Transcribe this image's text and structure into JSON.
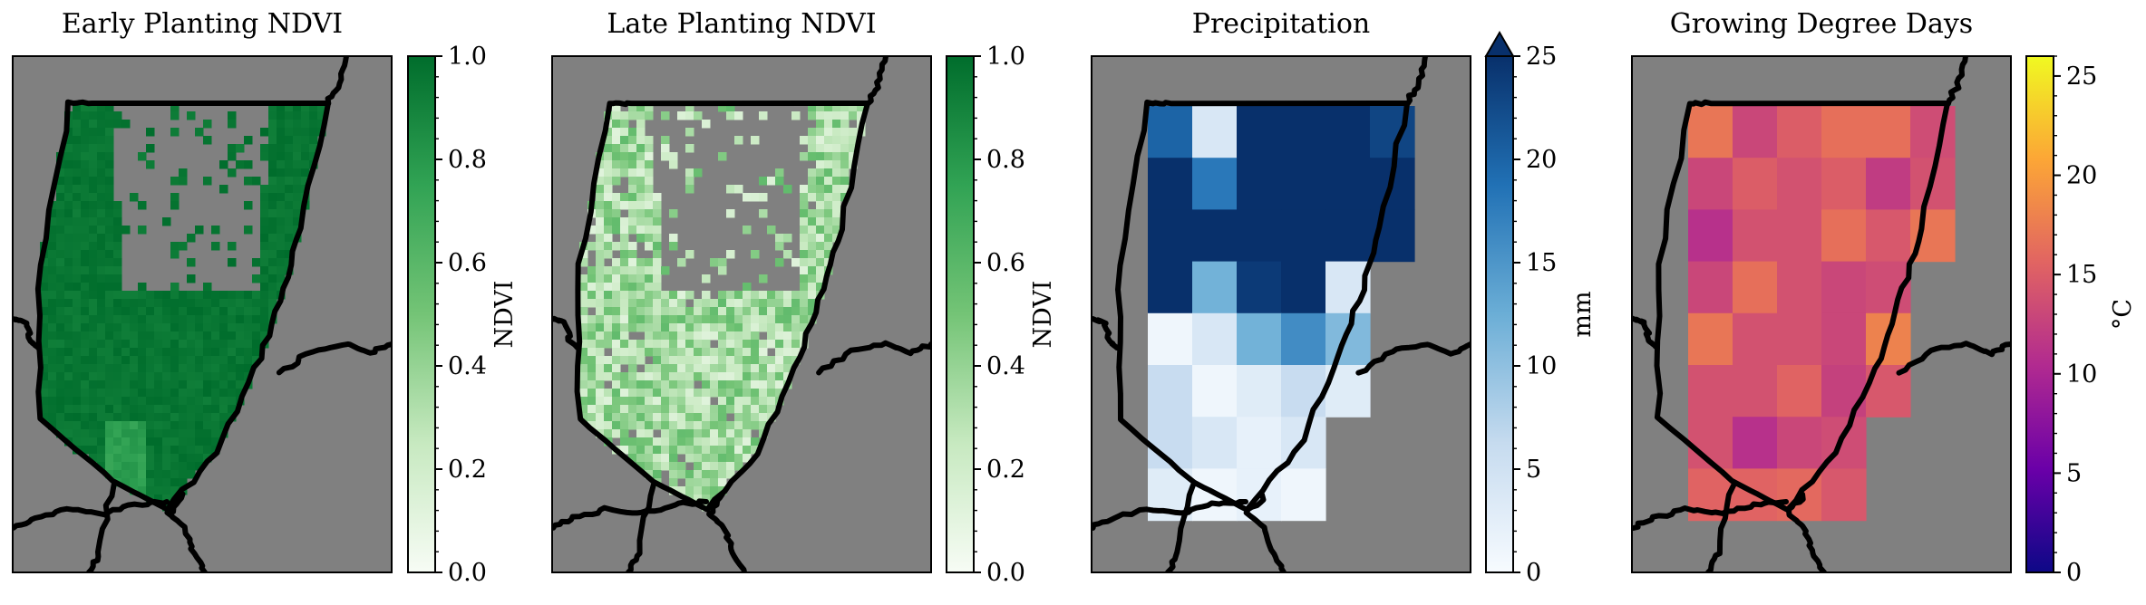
{
  "chart_data": [
    {
      "type": "heatmap",
      "title": "Early Planting NDVI",
      "colorbar": {
        "label": "NDVI",
        "range": [
          0.0,
          1.0
        ],
        "ticks": [
          "0.0",
          "0.2",
          "0.4",
          "0.6",
          "0.8",
          "1.0"
        ],
        "colormap": "Greens",
        "extend": "neither"
      },
      "description_values": {
        "dominant_value": 1.0,
        "patch_low_value": 0.75,
        "background": "no data (gray)"
      }
    },
    {
      "type": "heatmap",
      "title": "Late Planting NDVI",
      "colorbar": {
        "label": "NDVI",
        "range": [
          0.0,
          1.0
        ],
        "ticks": [
          "0.0",
          "0.2",
          "0.4",
          "0.6",
          "0.8",
          "1.0"
        ],
        "colormap": "Greens",
        "extend": "neither"
      },
      "description_values": {
        "typical_range": [
          0.1,
          0.6
        ],
        "background": "no data (gray)"
      }
    },
    {
      "type": "heatmap",
      "title": "Precipitation",
      "colorbar": {
        "label": "mm",
        "range": [
          0,
          25
        ],
        "ticks": [
          "0",
          "5",
          "10",
          "15",
          "20",
          "25"
        ],
        "colormap": "Blues",
        "extend": "max"
      },
      "grid": [
        [
          20,
          4,
          26,
          26,
          26,
          23
        ],
        [
          26,
          18,
          26,
          26,
          26,
          26
        ],
        [
          26,
          25,
          26,
          26,
          26,
          26
        ],
        [
          26,
          12,
          24,
          26,
          4,
          null
        ],
        [
          1,
          4,
          12,
          16,
          11,
          null
        ],
        [
          6,
          1,
          3,
          6,
          3,
          null
        ],
        [
          6,
          4,
          2,
          4,
          null,
          null
        ],
        [
          3,
          1,
          2,
          1,
          null,
          null
        ]
      ]
    },
    {
      "type": "heatmap",
      "title": "Growing Degree Days",
      "colorbar": {
        "label": "°C",
        "range": [
          0,
          26
        ],
        "ticks": [
          "0",
          "5",
          "10",
          "15",
          "20",
          "25"
        ],
        "colormap": "plasma",
        "extend": "neither"
      },
      "grid": [
        [
          17,
          13,
          15,
          16.5,
          16.5,
          13.5
        ],
        [
          13,
          15,
          14,
          15,
          12,
          14
        ],
        [
          11,
          14,
          14,
          16.5,
          14.5,
          17
        ],
        [
          13,
          16.5,
          14,
          13,
          13.5,
          null
        ],
        [
          17,
          14,
          14,
          13,
          18,
          null
        ],
        [
          14,
          14,
          15.5,
          12.5,
          14.5,
          null
        ],
        [
          14,
          11,
          13,
          13.5,
          null,
          null
        ],
        [
          15.5,
          15.5,
          16,
          14.5,
          null,
          null
        ]
      ]
    }
  ],
  "colors": {
    "no_data": "#808080",
    "border": "#000000"
  }
}
